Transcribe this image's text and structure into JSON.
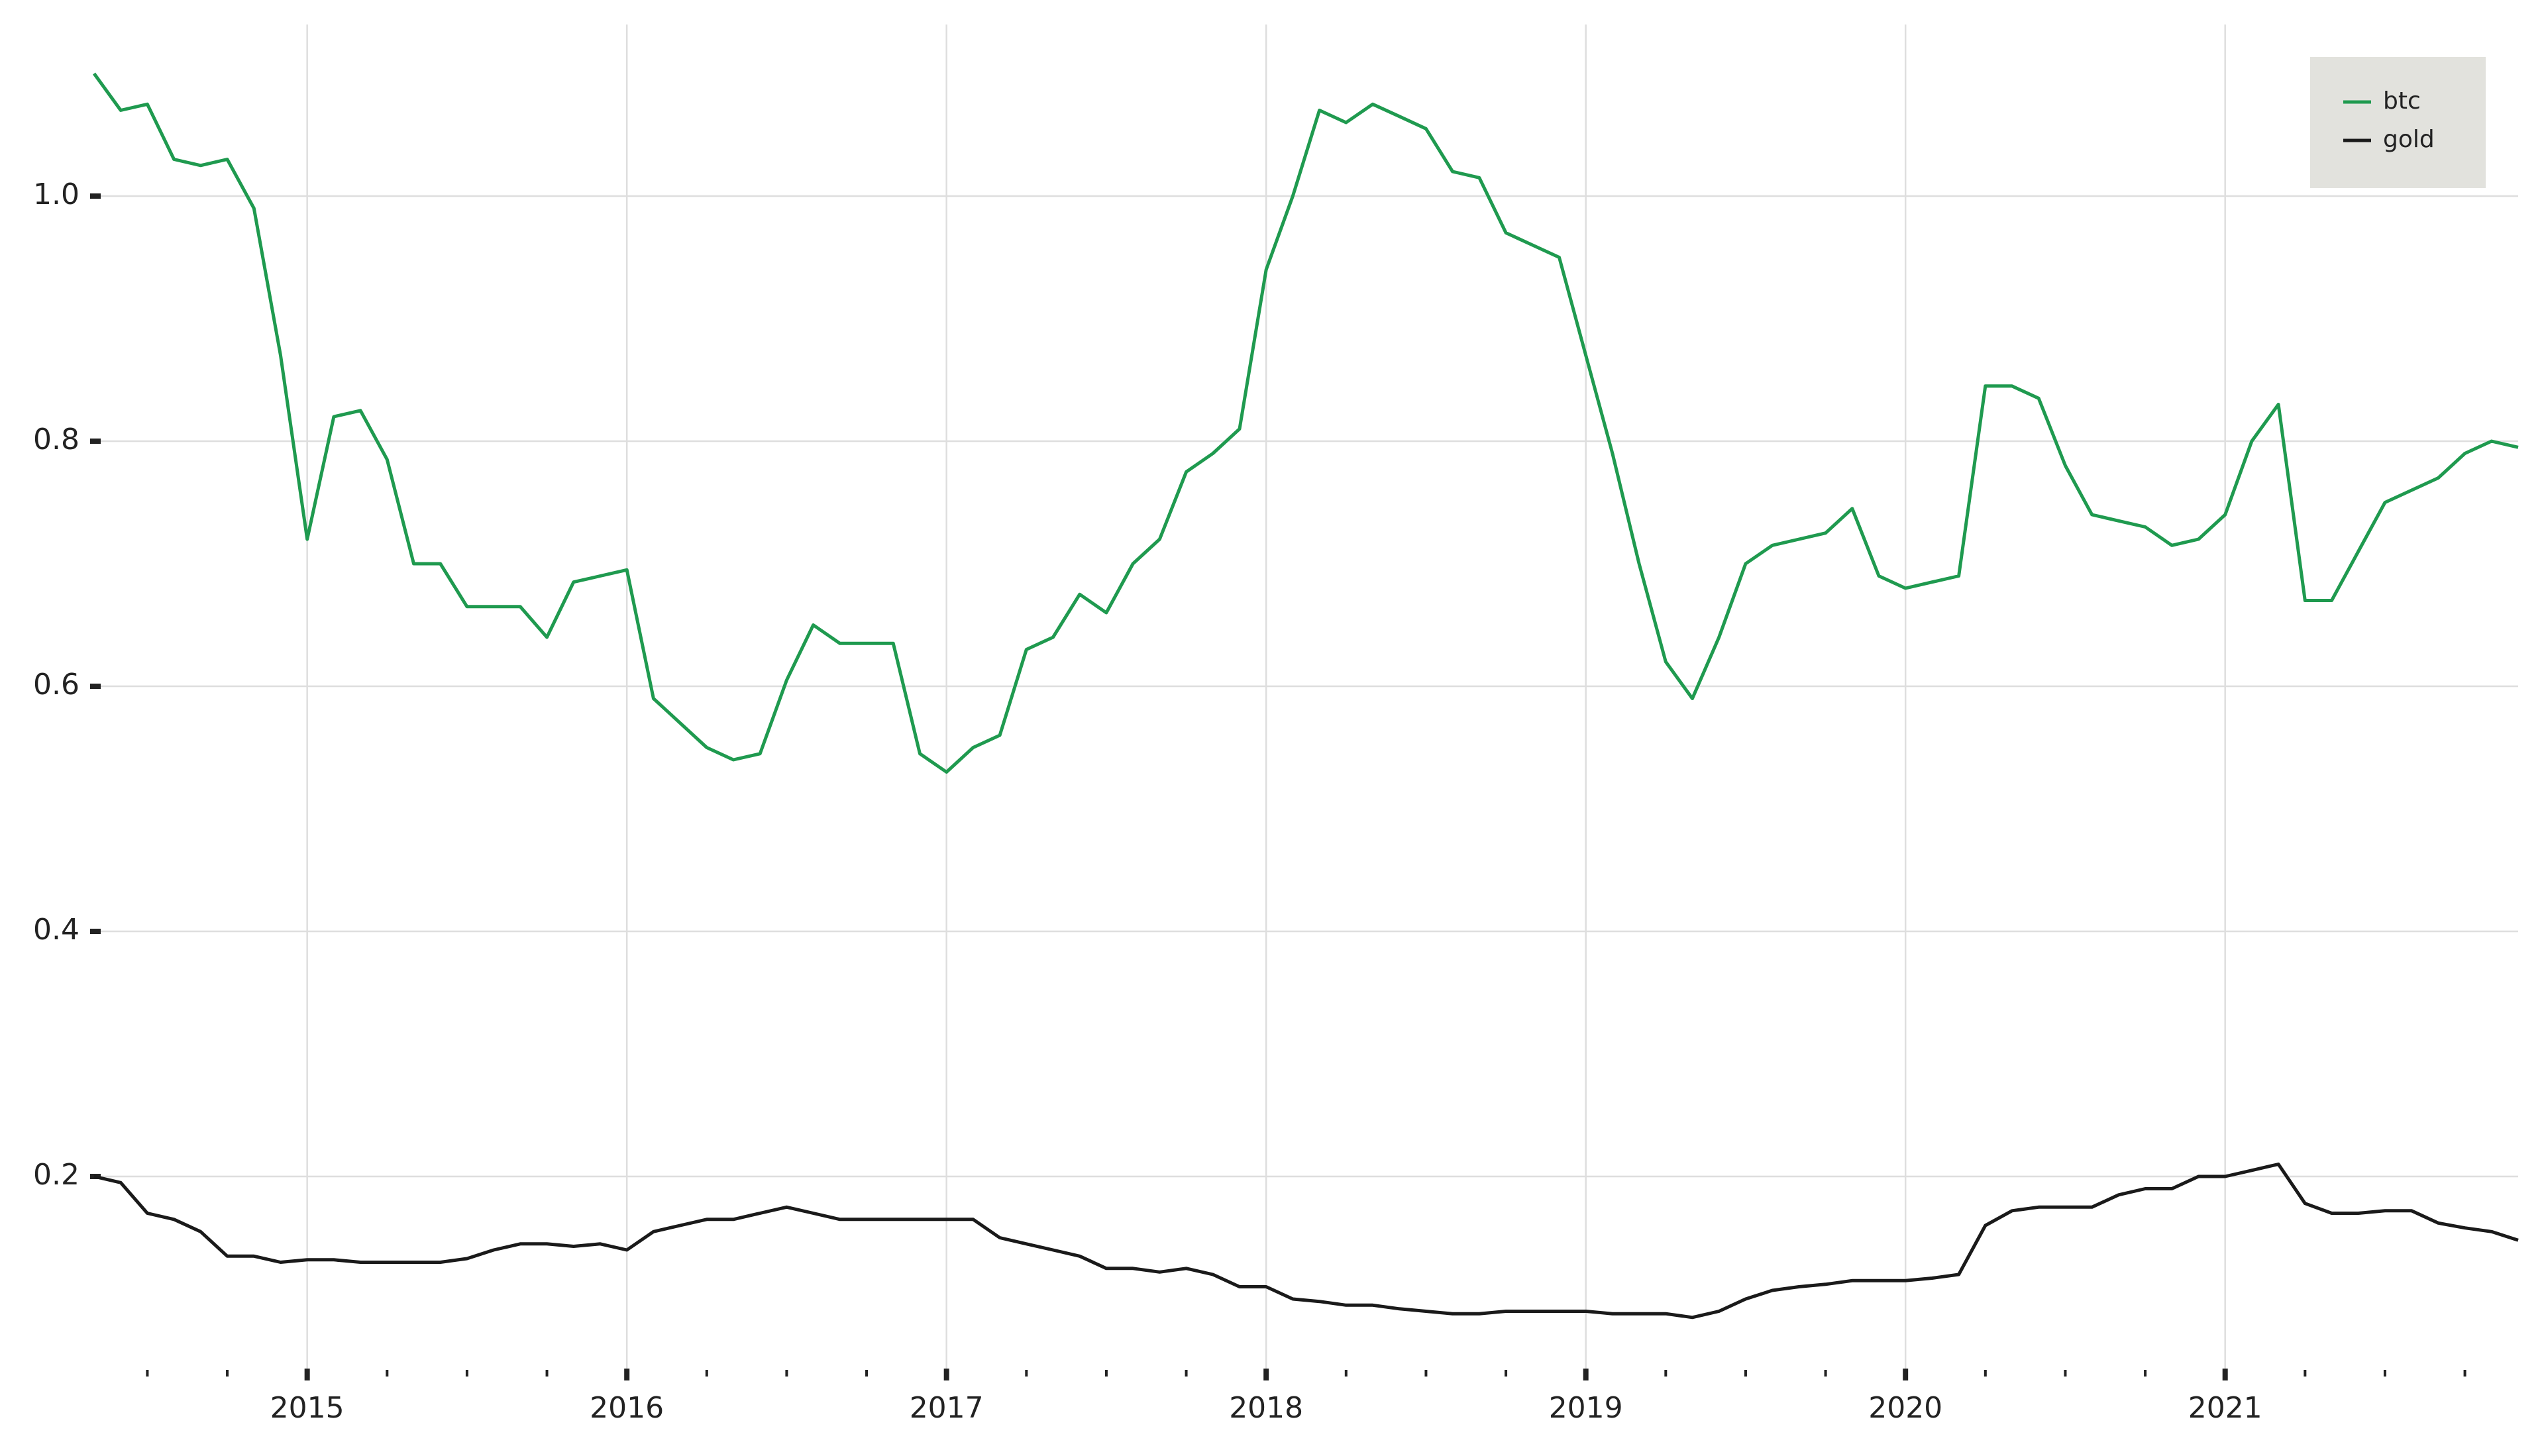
{
  "chart_data": {
    "type": "line",
    "xlim": [
      "2014-05",
      "2021-12"
    ],
    "xticks": [
      {
        "value": "2015-01",
        "label": "2015"
      },
      {
        "value": "2016-01",
        "label": "2016"
      },
      {
        "value": "2017-01",
        "label": "2017"
      },
      {
        "value": "2018-01",
        "label": "2018"
      },
      {
        "value": "2019-01",
        "label": "2019"
      },
      {
        "value": "2020-01",
        "label": "2020"
      },
      {
        "value": "2021-01",
        "label": "2021"
      }
    ],
    "xminorticks": [
      "2014-07",
      "2014-10",
      "2015-04",
      "2015-07",
      "2015-10",
      "2016-04",
      "2016-07",
      "2016-10",
      "2017-04",
      "2017-07",
      "2017-10",
      "2018-04",
      "2018-07",
      "2018-10",
      "2019-04",
      "2019-07",
      "2019-10",
      "2020-04",
      "2020-07",
      "2020-10",
      "2021-04",
      "2021-07",
      "2021-10"
    ],
    "ylim": [
      0.04,
      1.14
    ],
    "yticks": [
      0.2,
      0.4,
      0.6,
      0.8,
      {
        "value": 1,
        "label": "1.0"
      }
    ],
    "grid": true,
    "legend": "upper right",
    "x": [
      "2014-05",
      "2014-06",
      "2014-07",
      "2014-08",
      "2014-09",
      "2014-10",
      "2014-11",
      "2014-12",
      "2015-01",
      "2015-02",
      "2015-03",
      "2015-04",
      "2015-05",
      "2015-06",
      "2015-07",
      "2015-08",
      "2015-09",
      "2015-10",
      "2015-11",
      "2015-12",
      "2016-01",
      "2016-02",
      "2016-03",
      "2016-04",
      "2016-05",
      "2016-06",
      "2016-07",
      "2016-08",
      "2016-09",
      "2016-10",
      "2016-11",
      "2016-12",
      "2017-01",
      "2017-02",
      "2017-03",
      "2017-04",
      "2017-05",
      "2017-06",
      "2017-07",
      "2017-08",
      "2017-09",
      "2017-10",
      "2017-11",
      "2017-12",
      "2018-01",
      "2018-02",
      "2018-03",
      "2018-04",
      "2018-05",
      "2018-06",
      "2018-07",
      "2018-08",
      "2018-09",
      "2018-10",
      "2018-11",
      "2018-12",
      "2019-01",
      "2019-02",
      "2019-03",
      "2019-04",
      "2019-05",
      "2019-06",
      "2019-07",
      "2019-08",
      "2019-09",
      "2019-10",
      "2019-11",
      "2019-12",
      "2020-01",
      "2020-02",
      "2020-03",
      "2020-04",
      "2020-05",
      "2020-06",
      "2020-07",
      "2020-08",
      "2020-09",
      "2020-10",
      "2020-11",
      "2020-12",
      "2021-01",
      "2021-02",
      "2021-03",
      "2021-04",
      "2021-05",
      "2021-06",
      "2021-07",
      "2021-08",
      "2021-09",
      "2021-10",
      "2021-11",
      "2021-12"
    ],
    "series": [
      {
        "name": "btc",
        "color": "#1f9a4f",
        "values": [
          1.1,
          1.07,
          1.075,
          1.03,
          1.025,
          1.03,
          0.99,
          0.87,
          0.72,
          0.82,
          0.825,
          0.785,
          0.7,
          0.7,
          0.665,
          0.665,
          0.665,
          0.64,
          0.685,
          0.69,
          0.695,
          0.59,
          0.57,
          0.55,
          0.54,
          0.545,
          0.605,
          0.65,
          0.635,
          0.635,
          0.635,
          0.545,
          0.53,
          0.55,
          0.56,
          0.63,
          0.64,
          0.675,
          0.66,
          0.7,
          0.72,
          0.775,
          0.79,
          0.81,
          0.94,
          1.0,
          1.07,
          1.06,
          1.075,
          1.065,
          1.055,
          1.02,
          1.015,
          0.97,
          0.96,
          0.95,
          0.87,
          0.79,
          0.7,
          0.62,
          0.59,
          0.64,
          0.7,
          0.715,
          0.72,
          0.725,
          0.745,
          0.69,
          0.68,
          0.685,
          0.69,
          0.845,
          0.845,
          0.835,
          0.78,
          0.74,
          0.735,
          0.73,
          0.715,
          0.72,
          0.74,
          0.8,
          0.83,
          0.67,
          0.67,
          0.71,
          0.75,
          0.76,
          0.77,
          0.79,
          0.8,
          0.795
        ]
      },
      {
        "name": "gold",
        "color": "#1a1a1a",
        "values": [
          0.2,
          0.195,
          0.17,
          0.165,
          0.155,
          0.135,
          0.135,
          0.13,
          0.132,
          0.132,
          0.13,
          0.13,
          0.13,
          0.13,
          0.133,
          0.14,
          0.145,
          0.145,
          0.143,
          0.145,
          0.14,
          0.155,
          0.16,
          0.165,
          0.165,
          0.17,
          0.175,
          0.17,
          0.165,
          0.165,
          0.165,
          0.165,
          0.165,
          0.165,
          0.15,
          0.145,
          0.14,
          0.135,
          0.125,
          0.125,
          0.122,
          0.125,
          0.12,
          0.11,
          0.11,
          0.1,
          0.098,
          0.095,
          0.095,
          0.092,
          0.09,
          0.088,
          0.088,
          0.09,
          0.09,
          0.09,
          0.09,
          0.088,
          0.088,
          0.088,
          0.085,
          0.09,
          0.1,
          0.107,
          0.11,
          0.112,
          0.115,
          0.115,
          0.115,
          0.117,
          0.12,
          0.16,
          0.172,
          0.175,
          0.175,
          0.175,
          0.185,
          0.19,
          0.19,
          0.2,
          0.2,
          0.205,
          0.21,
          0.178,
          0.17,
          0.17,
          0.172,
          0.172,
          0.162,
          0.158,
          0.155,
          0.148
        ]
      }
    ]
  }
}
